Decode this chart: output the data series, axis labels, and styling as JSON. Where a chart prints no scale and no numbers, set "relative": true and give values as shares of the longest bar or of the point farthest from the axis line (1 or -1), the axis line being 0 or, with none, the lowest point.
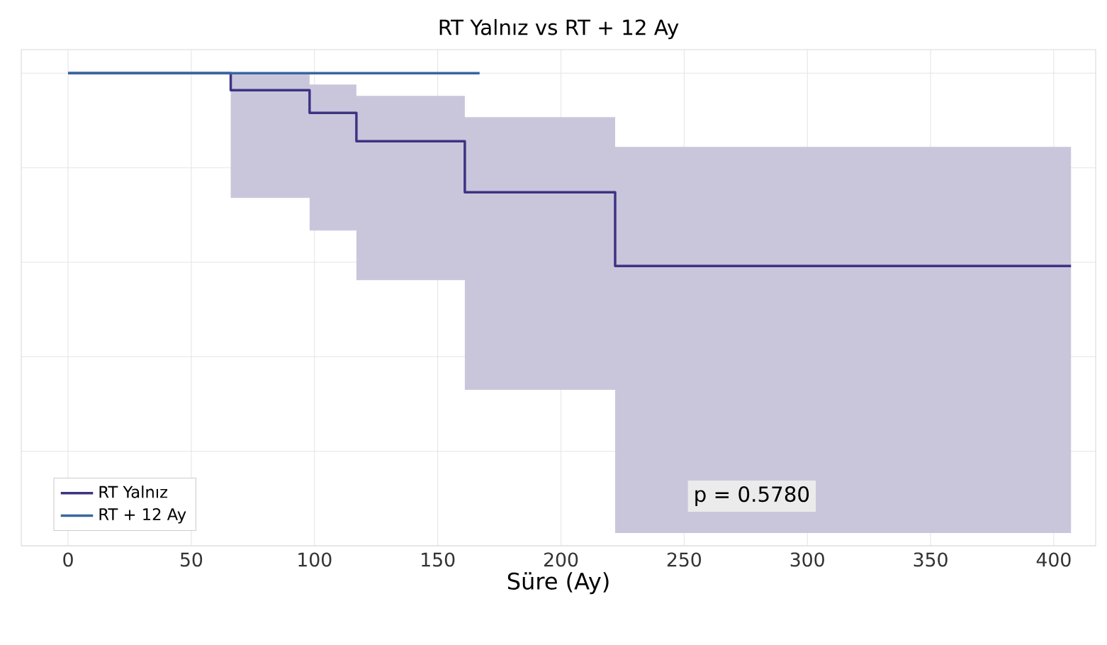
{
  "chart_data": {
    "type": "step",
    "title": "RT Yalnız vs RT + 12 Ay",
    "xlabel": "Süre (Ay)",
    "relative": true,
    "xlim": [
      -19,
      417
    ],
    "xticks": [
      0,
      50,
      100,
      150,
      200,
      250,
      300,
      350,
      400
    ],
    "grid": true,
    "legend": "bottom left",
    "annotations": [
      "p = 0.5780"
    ],
    "series": [
      {
        "name": "RT Yalnız",
        "color": "#3d3383",
        "x": [
          0,
          66,
          98,
          117,
          161,
          222,
          407
        ],
        "values": [
          1,
          0.964,
          0.916,
          0.856,
          0.748,
          0.592,
          0.592
        ],
        "lower": [
          1,
          0.736,
          0.667,
          0.562,
          0.33,
          0.027,
          0.027
        ],
        "upper": [
          1,
          1,
          0.976,
          0.952,
          0.907,
          0.844,
          0.844
        ]
      },
      {
        "name": "RT + 12 Ay",
        "color": "#3a66a0",
        "x": [
          0,
          167
        ],
        "values": [
          1,
          1
        ]
      }
    ]
  }
}
